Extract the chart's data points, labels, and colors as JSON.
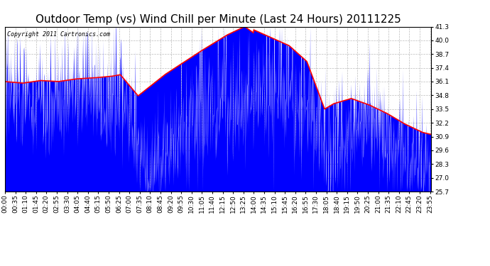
{
  "title": "Outdoor Temp (vs) Wind Chill per Minute (Last 24 Hours) 20111225",
  "copyright_text": "Copyright 2011 Cartronics.com",
  "y_ticks": [
    25.7,
    27.0,
    28.3,
    29.6,
    30.9,
    32.2,
    33.5,
    34.8,
    36.1,
    37.4,
    38.7,
    40.0,
    41.3
  ],
  "y_min": 25.7,
  "y_max": 41.3,
  "background_color": "#ffffff",
  "plot_bg_color": "#ffffff",
  "grid_color": "#bbbbbb",
  "blue_color": "#0000ff",
  "red_color": "#ff0000",
  "title_fontsize": 11,
  "tick_fontsize": 6.5,
  "copyright_fontsize": 6
}
